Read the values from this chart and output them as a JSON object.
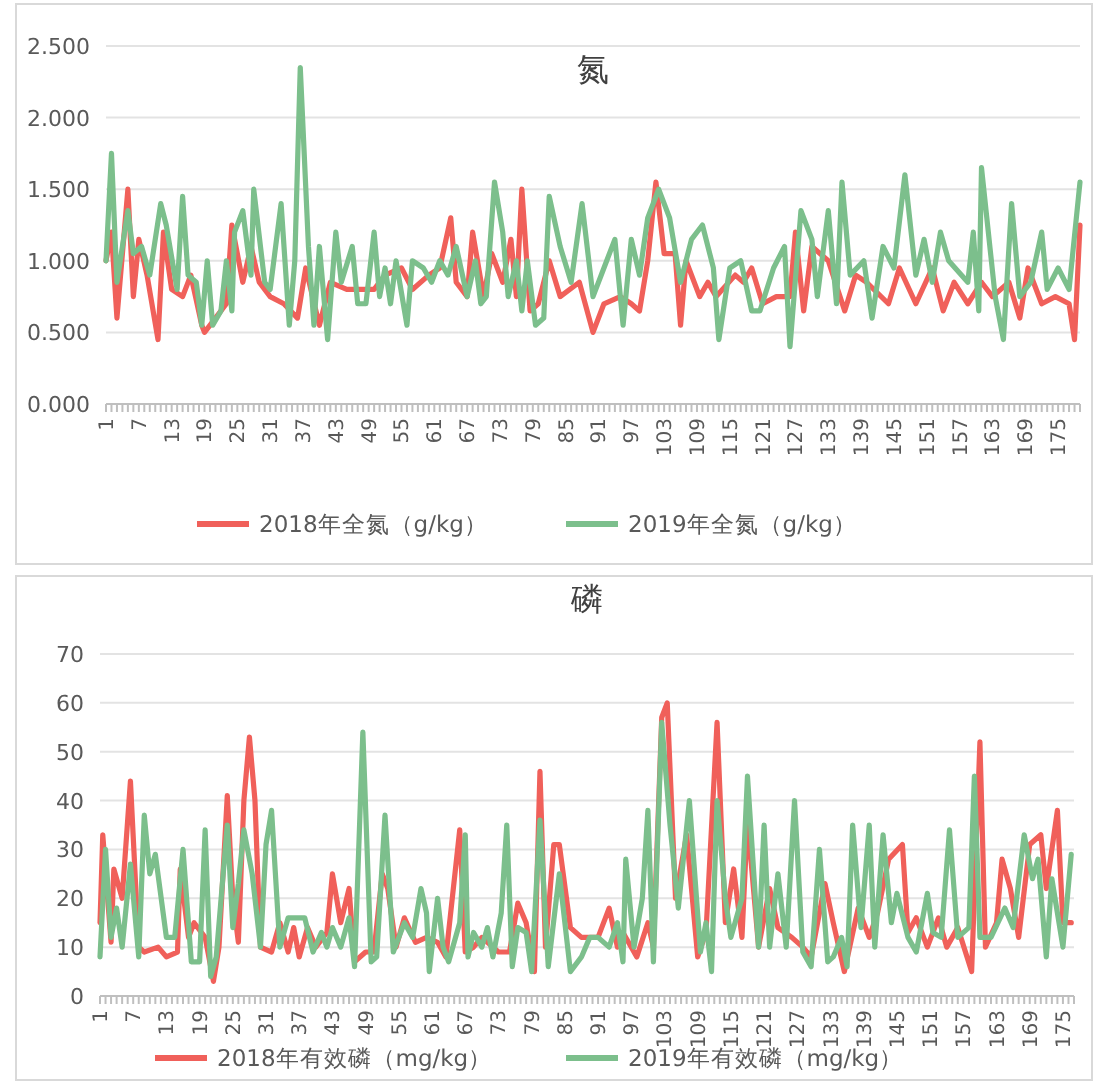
{
  "chart_data": [
    {
      "type": "line",
      "title": "氮",
      "xlim": [
        1,
        179
      ],
      "xticks": [
        1,
        7,
        13,
        19,
        25,
        31,
        37,
        43,
        49,
        55,
        61,
        67,
        73,
        79,
        85,
        91,
        97,
        103,
        109,
        115,
        121,
        127,
        133,
        139,
        145,
        151,
        157,
        163,
        169,
        175
      ],
      "ylim": [
        0,
        2.5
      ],
      "yticks": [
        {
          "value": 0,
          "label": "0.000"
        },
        {
          "value": 0.5,
          "label": "0.500"
        },
        {
          "value": 1,
          "label": "1.000"
        },
        {
          "value": 1.5,
          "label": "1.500"
        },
        {
          "value": 2,
          "label": "2.000"
        },
        {
          "value": 2.5,
          "label": "2.500"
        }
      ],
      "grid": "y",
      "legend": "bottom",
      "series": [
        {
          "name": "2018年全氮（g/kg）",
          "color": "#f0605a",
          "x": [
            1,
            2,
            3,
            5,
            6,
            7,
            8.5,
            10.5,
            11.5,
            13,
            15,
            16.5,
            18.5,
            19,
            21,
            23,
            24,
            26,
            27.5,
            29,
            31,
            33.5,
            36,
            37.5,
            40,
            42,
            45,
            47,
            50,
            52,
            55,
            57,
            60,
            62,
            64,
            65,
            67,
            68,
            70,
            71.5,
            73.5,
            75,
            76,
            77,
            78.5,
            80,
            82,
            84,
            87.5,
            90,
            92,
            95,
            97,
            98.5,
            100,
            101.5,
            103,
            105,
            106,
            107,
            109.5,
            111,
            112.5,
            116,
            117.5,
            119,
            121,
            123.5,
            126,
            127,
            128.5,
            130,
            133,
            136,
            138,
            140,
            144,
            146,
            149,
            152,
            154,
            156,
            158.5,
            161,
            163,
            166,
            168,
            169.5,
            172,
            174.5,
            177,
            178,
            179
          ],
          "values": [
            1.0,
            1.2,
            0.6,
            1.5,
            0.75,
            1.15,
            0.9,
            0.45,
            1.2,
            0.8,
            0.75,
            0.9,
            0.55,
            0.5,
            0.6,
            0.7,
            1.25,
            0.85,
            1.1,
            0.85,
            0.75,
            0.7,
            0.6,
            0.95,
            0.55,
            0.85,
            0.8,
            0.8,
            0.8,
            0.9,
            0.95,
            0.8,
            0.9,
            0.95,
            1.3,
            0.85,
            0.75,
            1.2,
            0.75,
            1.05,
            0.85,
            1.15,
            0.75,
            1.5,
            0.65,
            0.7,
            1.0,
            0.75,
            0.85,
            0.5,
            0.7,
            0.75,
            0.7,
            0.65,
            1.0,
            1.55,
            1.05,
            1.05,
            0.55,
            1.0,
            0.75,
            0.85,
            0.75,
            0.9,
            0.85,
            0.95,
            0.7,
            0.75,
            0.75,
            1.2,
            0.65,
            1.1,
            1.0,
            0.65,
            0.9,
            0.85,
            0.7,
            0.95,
            0.7,
            0.95,
            0.65,
            0.85,
            0.7,
            0.85,
            0.75,
            0.85,
            0.6,
            0.95,
            0.7,
            0.75,
            0.7,
            0.45,
            1.25
          ]
        },
        {
          "name": "2019年全氮（g/kg）",
          "color": "#7cbf8c",
          "x": [
            1,
            2,
            3,
            5,
            6,
            7.5,
            9,
            11,
            12,
            14,
            15,
            16,
            17.5,
            18.5,
            19.5,
            20.5,
            22,
            23,
            24,
            24.5,
            26,
            27.5,
            28,
            30,
            31,
            33,
            34.5,
            35.5,
            36.5,
            38,
            39,
            40,
            41.5,
            43,
            44,
            46,
            47,
            48.5,
            50,
            51,
            52,
            53,
            54,
            56,
            57,
            59,
            60.5,
            62,
            63.5,
            65,
            67,
            68.5,
            69.5,
            70.5,
            72,
            73.5,
            74.5,
            76,
            77,
            78,
            79.5,
            81,
            82,
            84,
            86,
            88,
            90,
            92,
            94,
            95.5,
            97,
            98.5,
            100,
            102,
            104,
            106,
            108,
            110,
            112,
            113,
            115,
            117,
            119,
            120.5,
            123,
            125,
            126,
            128,
            130,
            131,
            133,
            134.5,
            135.5,
            137,
            139.5,
            141,
            143,
            145,
            147,
            149,
            150.5,
            152,
            153.5,
            155,
            158.5,
            159.5,
            160.5,
            161,
            163.5,
            165,
            166.5,
            168,
            170,
            172,
            173,
            175,
            177,
            179
          ],
          "values": [
            1.0,
            1.75,
            0.85,
            1.35,
            1.05,
            1.1,
            0.9,
            1.4,
            1.25,
            0.8,
            1.45,
            0.9,
            0.85,
            0.55,
            1.0,
            0.55,
            0.65,
            1.0,
            0.65,
            1.2,
            1.35,
            0.9,
            1.5,
            0.85,
            0.8,
            1.4,
            0.55,
            1.0,
            2.35,
            1.1,
            0.55,
            1.1,
            0.45,
            1.2,
            0.85,
            1.1,
            0.7,
            0.7,
            1.2,
            0.75,
            0.95,
            0.7,
            1.0,
            0.55,
            1.0,
            0.95,
            0.85,
            1.0,
            0.9,
            1.1,
            0.75,
            1.0,
            0.7,
            0.75,
            1.55,
            1.2,
            0.75,
            1.0,
            0.65,
            1.0,
            0.55,
            0.6,
            1.45,
            1.1,
            0.85,
            1.4,
            0.75,
            0.95,
            1.15,
            0.55,
            1.15,
            0.9,
            1.3,
            1.5,
            1.3,
            0.85,
            1.15,
            1.25,
            0.95,
            0.45,
            0.95,
            1.0,
            0.65,
            0.65,
            0.95,
            1.1,
            0.4,
            1.35,
            1.15,
            0.75,
            1.35,
            0.7,
            1.55,
            0.9,
            1.0,
            0.6,
            1.1,
            0.95,
            1.6,
            0.9,
            1.15,
            0.85,
            1.2,
            1.0,
            0.85,
            1.2,
            0.65,
            1.65,
            0.75,
            0.45,
            1.4,
            0.75,
            0.85,
            1.2,
            0.8,
            0.95,
            0.8,
            1.55
          ]
        }
      ]
    },
    {
      "type": "line",
      "title": "磷",
      "xlim": [
        1,
        177
      ],
      "xticks": [
        1,
        7,
        13,
        19,
        25,
        31,
        37,
        43,
        49,
        55,
        61,
        67,
        73,
        79,
        85,
        91,
        97,
        103,
        109,
        115,
        121,
        127,
        133,
        139,
        145,
        151,
        157,
        163,
        169,
        175
      ],
      "ylim": [
        0,
        70
      ],
      "yticks": [
        0,
        10,
        20,
        30,
        40,
        50,
        60,
        70
      ],
      "grid": "y",
      "legend": "bottom",
      "series": [
        {
          "name": "2018年有效磷（mg/kg）",
          "color": "#f0605a",
          "x": [
            1,
            1.5,
            3,
            3.5,
            5,
            6.5,
            8,
            9,
            11.5,
            13,
            15,
            15.5,
            17,
            18,
            20,
            21.5,
            22.5,
            24,
            25,
            26,
            27,
            28,
            29,
            30,
            32,
            33.5,
            35,
            36,
            37,
            38.5,
            40,
            42,
            43,
            44.5,
            46,
            47,
            49,
            50.5,
            52,
            53,
            54.5,
            56,
            58,
            60,
            62,
            63.5,
            66,
            67,
            68.5,
            70,
            73,
            75,
            76.5,
            78,
            79.5,
            80.5,
            81.5,
            83,
            84,
            86,
            88,
            91,
            93,
            94.5,
            95.5,
            98,
            100,
            101,
            102.5,
            103.5,
            105,
            107,
            109,
            110.5,
            112.5,
            114,
            115.5,
            117,
            118,
            120,
            122,
            123.5,
            126,
            128,
            129.5,
            132,
            133.5,
            135.5,
            138,
            140,
            141.5,
            143.5,
            146,
            147,
            148.5,
            150.5,
            152.5,
            154,
            156,
            158.5,
            160,
            161,
            163,
            164,
            165.5,
            167,
            169,
            171,
            172,
            174,
            175,
            176.5
          ],
          "values": [
            15,
            33,
            11,
            26,
            20,
            44,
            10,
            9,
            10,
            8,
            9,
            26,
            12,
            15,
            12,
            3,
            10,
            41,
            20,
            11,
            40,
            53,
            40,
            10,
            9,
            15,
            9,
            14,
            8,
            14,
            10,
            13,
            25,
            15,
            22,
            7,
            9,
            9,
            25,
            22,
            10,
            16,
            11,
            12,
            11,
            8,
            34,
            9,
            10,
            12,
            9,
            9,
            19,
            15,
            5,
            46,
            10,
            31,
            31,
            14,
            12,
            12,
            18,
            10,
            13,
            8,
            15,
            10,
            57,
            60,
            20,
            33,
            8,
            13,
            56,
            15,
            26,
            12,
            36,
            10,
            22,
            14,
            12,
            10,
            8,
            23,
            15,
            5,
            18,
            12,
            17,
            28,
            31,
            13,
            16,
            10,
            16,
            10,
            14,
            5,
            52,
            10,
            15,
            28,
            22,
            12,
            31,
            33,
            22,
            38,
            15,
            15
          ]
        },
        {
          "name": "2019年有效磷（mg/kg）",
          "color": "#7cbf8c",
          "x": [
            1,
            2,
            3,
            4,
            5,
            6.5,
            8,
            9,
            10,
            11,
            13,
            14.5,
            16,
            17.5,
            19,
            20,
            21,
            22,
            24,
            25,
            26,
            27,
            28.5,
            30,
            31,
            32,
            33.5,
            35,
            38,
            39.5,
            41,
            42,
            43,
            44.5,
            46,
            47,
            48.5,
            50,
            51,
            52.5,
            54,
            55,
            56,
            57.5,
            59,
            60,
            60.5,
            62,
            63,
            64,
            66,
            67,
            67.5,
            68.5,
            70,
            71,
            72,
            73.5,
            74.5,
            75.5,
            76.5,
            78,
            79,
            80.5,
            82,
            84,
            86,
            88,
            89.5,
            91,
            93,
            94.5,
            95.5,
            96,
            97.5,
            99,
            100,
            101,
            102.5,
            104,
            105.5,
            107.5,
            109.5,
            110.5,
            111.5,
            112.5,
            114,
            115,
            117,
            118,
            120,
            121,
            122,
            123.5,
            125,
            126.5,
            128,
            129.5,
            131,
            132.5,
            133.5,
            135,
            136,
            137,
            138.5,
            140,
            141,
            142.5,
            144,
            145,
            147,
            148.5,
            150.5,
            151.5,
            153,
            154.5,
            156,
            158,
            159,
            160,
            162,
            164.5,
            166,
            168,
            169.5,
            170.5,
            172,
            173,
            175,
            176.5
          ],
          "values": [
            8,
            30,
            12,
            18,
            10,
            27,
            8,
            37,
            25,
            29,
            12,
            12,
            30,
            7,
            7,
            34,
            4,
            8,
            35,
            14,
            23,
            34,
            25,
            10,
            31,
            38,
            10,
            16,
            16,
            9,
            13,
            10,
            14,
            10,
            16,
            6,
            54,
            7,
            8,
            37,
            9,
            12,
            15,
            12,
            22,
            17,
            5,
            20,
            10,
            7,
            15,
            33,
            8,
            13,
            10,
            14,
            8,
            17,
            35,
            6,
            14,
            13,
            5,
            36,
            6,
            25,
            5,
            8,
            12,
            12,
            10,
            15,
            7,
            28,
            10,
            20,
            38,
            7,
            56,
            35,
            18,
            40,
            9,
            15,
            5,
            40,
            20,
            12,
            20,
            45,
            10,
            35,
            10,
            25,
            10,
            40,
            9,
            6,
            30,
            7,
            8,
            12,
            6,
            35,
            14,
            35,
            10,
            33,
            15,
            21,
            12,
            9,
            21,
            13,
            12,
            34,
            12,
            14,
            45,
            12,
            12,
            18,
            14,
            33,
            24,
            28,
            8,
            24,
            10,
            29
          ]
        }
      ]
    }
  ]
}
